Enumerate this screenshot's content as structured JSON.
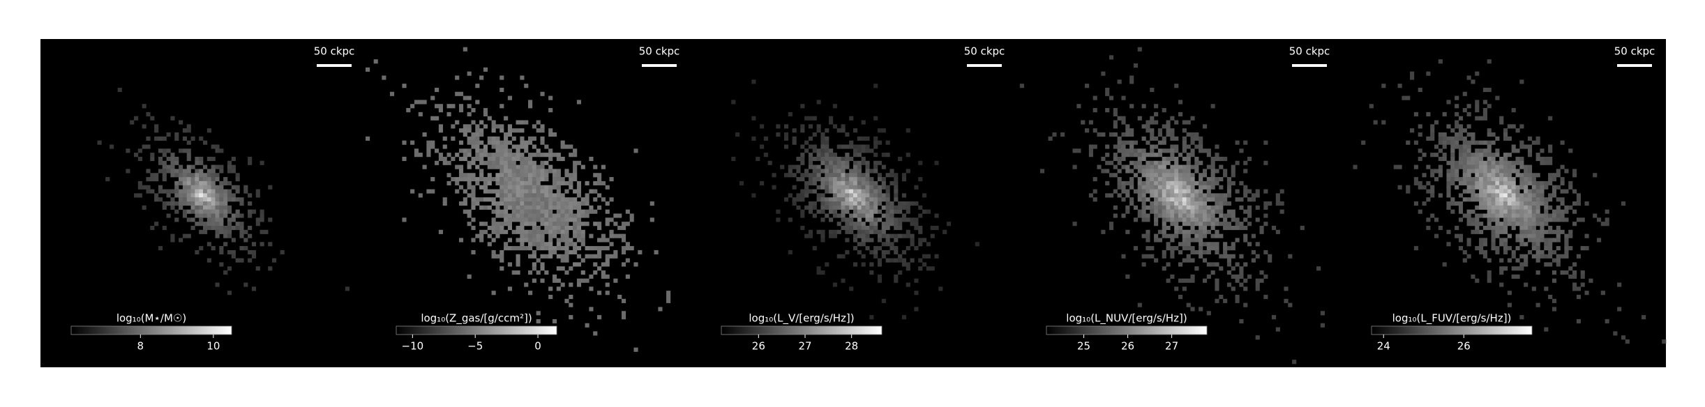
{
  "panels": [
    {
      "scale_bar": "50 ckpc",
      "colorbar_label": "log₁₀(M⋆/M☉)",
      "clim": [
        6.1,
        10.5
      ],
      "cticks": [
        8,
        10
      ]
    },
    {
      "scale_bar": "50 ckpc",
      "colorbar_label": "log₁₀(Z_gas/[g/ccm²])",
      "clim": [
        -11.3,
        1.5
      ],
      "cticks": [
        {
          "value": -10,
          "label": "−10"
        },
        {
          "value": -5,
          "label": "−5"
        },
        0
      ]
    },
    {
      "scale_bar": "50 ckpc",
      "colorbar_label": "log₁₀(L_V/[erg/s/Hz])",
      "clim": [
        25.2,
        28.65
      ],
      "cticks": [
        26,
        27,
        28
      ]
    },
    {
      "scale_bar": "50 ckpc",
      "colorbar_label": "log₁₀(L_NUV/[erg/s/Hz])",
      "clim": [
        24.15,
        27.8
      ],
      "cticks": [
        25,
        26,
        27
      ]
    },
    {
      "scale_bar": "50 ckpc",
      "colorbar_label": "log₁₀(L_FUV/[erg/s/Hz])",
      "clim": [
        23.7,
        27.7
      ],
      "cticks": [
        24,
        26
      ]
    }
  ]
}
